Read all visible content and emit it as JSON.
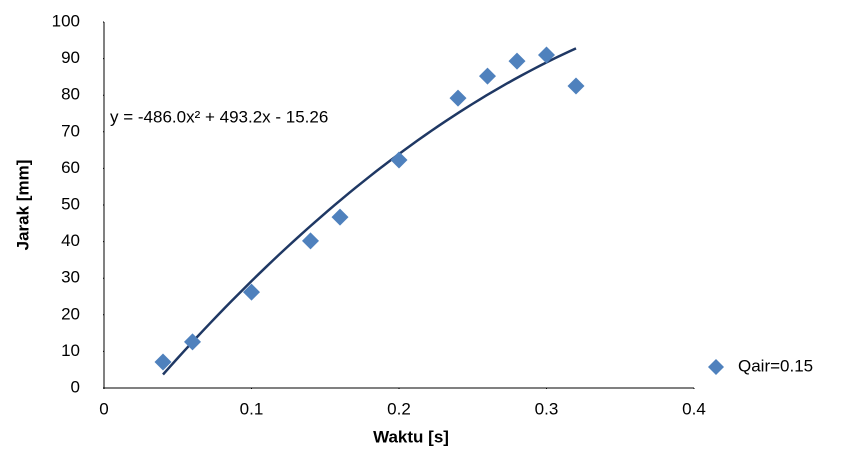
{
  "chart_data": {
    "type": "scatter",
    "x_label": "Waktu [s]",
    "y_label": "Jarak [mm]",
    "series": [
      {
        "name": "Qair=0.15",
        "color": "#4f81bd",
        "x": [
          0.04,
          0.06,
          0.1,
          0.14,
          0.16,
          0.2,
          0.24,
          0.26,
          0.28,
          0.3,
          0.32
        ],
        "values": [
          7.1,
          12.6,
          26.2,
          40.2,
          46.7,
          62.3,
          79.2,
          85.2,
          89.3,
          91,
          82.5
        ]
      }
    ],
    "trendline": {
      "label": "y = -486.0x² + 493.2x - 15.26",
      "coefficients": [
        -486.0,
        493.2,
        -15.26
      ],
      "color": "#1f3864"
    },
    "xlim": [
      0,
      0.4
    ],
    "xticks": [
      0,
      0.1,
      0.2,
      0.3,
      0.4
    ],
    "ylim": [
      0,
      100
    ],
    "yticks": [
      0,
      10,
      20,
      30,
      40,
      50,
      60,
      70,
      80,
      90,
      100
    ],
    "grid": false,
    "legend": "right"
  }
}
